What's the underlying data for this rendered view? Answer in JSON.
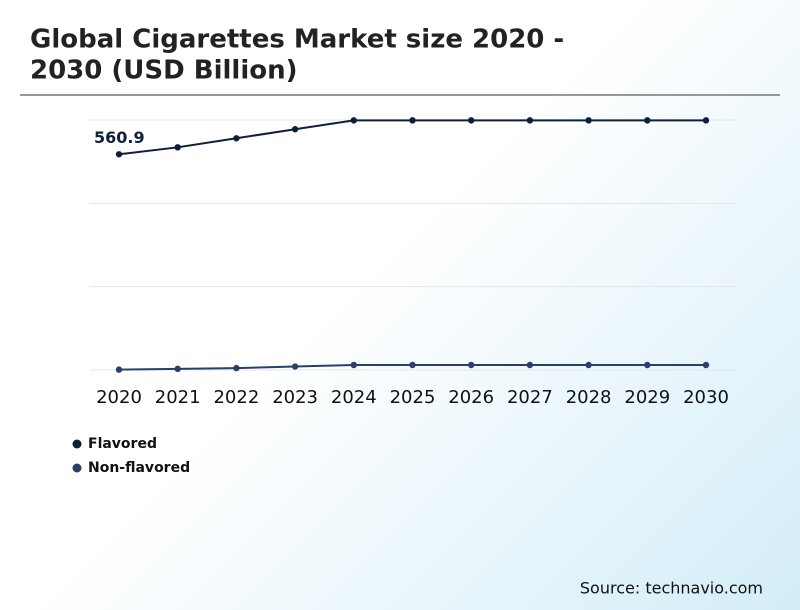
{
  "chart_data": {
    "type": "line",
    "title": "Global Cigarettes Market size 2020 -",
    "title_line2": "2030 (USD Billion)",
    "categories": [
      "2020",
      "2021",
      "2022",
      "2023",
      "2024",
      "2025",
      "2026",
      "2027",
      "2028",
      "2029",
      "2030"
    ],
    "series": [
      {
        "name": "Flavored",
        "color": "#0d1f3c",
        "values": [
          560.9,
          579,
          602.5,
          626,
          649,
          649,
          649,
          649,
          649,
          649,
          649
        ]
      },
      {
        "name": "Non-flavored",
        "color": "#2b3f6b",
        "values": [
          1,
          3,
          5,
          9,
          13,
          13,
          13,
          13,
          13,
          13,
          13
        ]
      }
    ],
    "ylim": [
      0,
      650
    ],
    "grid_values": [
      0,
      216.7,
      433.3,
      650
    ],
    "grid": true,
    "source": "Source: technavio.com"
  }
}
